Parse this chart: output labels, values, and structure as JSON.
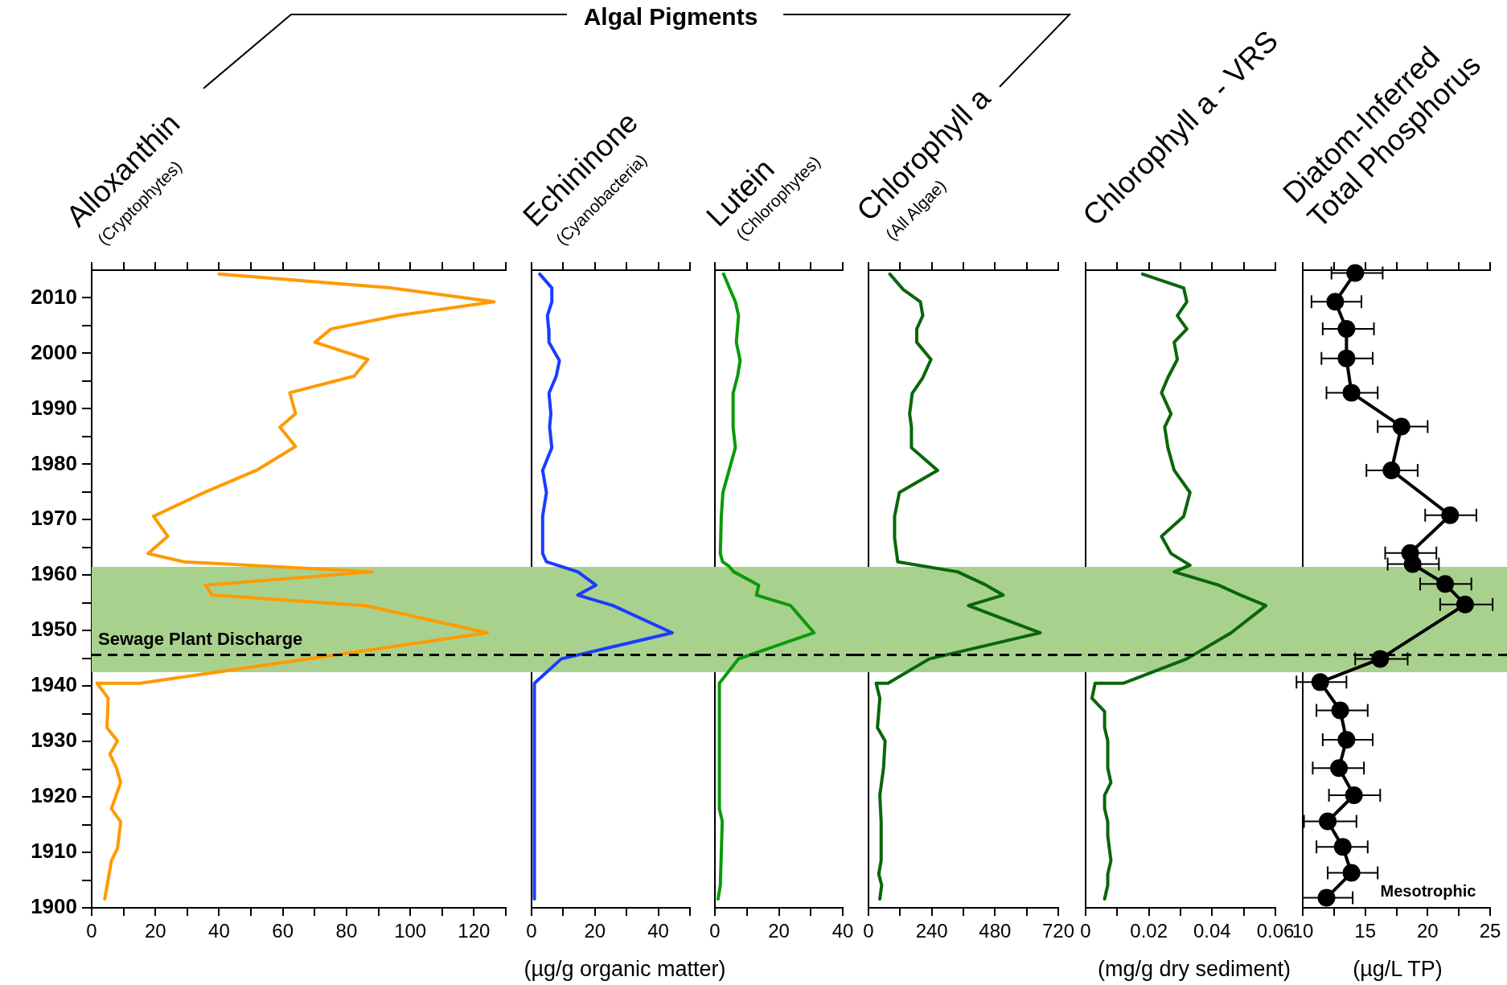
{
  "chart_data": [
    {
      "type": "line",
      "title": "Alloxanthin",
      "subtitle": "(Cryptophytes)",
      "color": "#ff9a00",
      "x": [
        40,
        93.8,
        126.3,
        95.9,
        75.1,
        70.1,
        86.7,
        82.4,
        62.2,
        64,
        59.1,
        64,
        51.7,
        35.7,
        19.4,
        23.9,
        17.7,
        29,
        88.1,
        35.7,
        37.8,
        86,
        124.2,
        15.2,
        1.7,
        5.2,
        4.8,
        8.1,
        5.7,
        7.8,
        9.1,
        6.2,
        9.1,
        8.1,
        6.2,
        4.1
      ],
      "values": [
        2014.3,
        2011.8,
        2009.3,
        2006.8,
        2004.4,
        2002,
        1998.9,
        1995.9,
        1992.9,
        1989.1,
        1986.7,
        1983.2,
        1978.9,
        1975,
        1970.6,
        1967,
        1963.9,
        1962.4,
        1960.6,
        1958.2,
        1956.4,
        1954.5,
        1949.6,
        1940.5,
        1940.5,
        1937.8,
        1932.5,
        1930.1,
        1927.7,
        1925.2,
        1922.6,
        1917.9,
        1915.5,
        1910.7,
        1908.5,
        1901.6
      ],
      "xlim": [
        0,
        130
      ],
      "xticks": [
        0,
        {
          "value": 10,
          "label": null
        },
        20,
        {
          "value": 30,
          "label": null
        },
        40,
        {
          "value": 50,
          "label": null
        },
        60,
        {
          "value": 70,
          "label": null
        },
        80,
        {
          "value": 90,
          "label": null
        },
        100,
        {
          "value": 110,
          "label": null
        },
        120,
        {
          "value": 130,
          "label": null
        }
      ],
      "ylim": [
        1900,
        2015
      ],
      "yticks": [
        1900,
        {
          "value": 1905,
          "label": null
        },
        1910,
        {
          "value": 1915,
          "label": null
        },
        1920,
        {
          "value": 1925,
          "label": null
        },
        1930,
        {
          "value": 1935,
          "label": null
        },
        1940,
        {
          "value": 1945,
          "label": null
        },
        1950,
        {
          "value": 1955,
          "label": null
        },
        1960,
        {
          "value": 1965,
          "label": null
        },
        1970,
        {
          "value": 1975,
          "label": null
        },
        1980,
        {
          "value": 1985,
          "label": null
        },
        1990,
        {
          "value": 1995,
          "label": null
        },
        2000,
        {
          "value": 2005,
          "label": null
        },
        2010
      ],
      "bands": [
        {
          "axis": "y",
          "from": 1942.5,
          "to": 1961.5,
          "color": "#a9d18e"
        }
      ],
      "ref_lines": [
        {
          "axis": "y",
          "value": 1945.6,
          "label": "Sewage Plant Discharge",
          "line_style": "dashed"
        }
      ],
      "annotations": [
        "Algal Pigments"
      ]
    },
    {
      "type": "line",
      "title": "Echininone",
      "subtitle": "(Cyanobacteria)",
      "xlabel": "(µg/g organic matter)",
      "color": "#1a3cff",
      "tick_labels": "x",
      "x": [
        2.6,
        6.4,
        6.4,
        5,
        5.4,
        5.5,
        8.8,
        7.8,
        5.5,
        6.1,
        5.7,
        6.4,
        3.5,
        4.7,
        3.5,
        3.5,
        4.7,
        14.6,
        20.3,
        14.6,
        25.7,
        44.4,
        9.4,
        0.9,
        0.9
      ],
      "values": [
        2014.3,
        2011.8,
        2009.3,
        2006.8,
        2004.4,
        2002,
        1998.7,
        1995.9,
        1992.8,
        1989.1,
        1986.7,
        1983,
        1978.9,
        1974.9,
        1970.6,
        1963.9,
        1962.4,
        1960.6,
        1958.2,
        1956.4,
        1954.5,
        1949.6,
        1944.9,
        1940.5,
        1901.6
      ],
      "xlim": [
        0,
        50
      ],
      "xticks": [
        0,
        {
          "value": 10,
          "label": null
        },
        20,
        {
          "value": 30,
          "label": null
        },
        40,
        {
          "value": 50,
          "label": null
        }
      ],
      "ylim": [
        1900,
        2015
      ],
      "bands": [
        {
          "axis": "y",
          "from": 1942.5,
          "to": 1961.5,
          "color": "#a9d18e"
        }
      ],
      "ref_lines": [
        {
          "axis": "y",
          "value": 1945.6,
          "line_style": "dashed"
        }
      ]
    },
    {
      "type": "line",
      "title": "Lutein",
      "subtitle": "(Chlorophytes)",
      "color": "#0a9a0a",
      "tick_labels": "x",
      "x": [
        2.7,
        6.4,
        7.4,
        6.7,
        7.9,
        7.1,
        5.7,
        5.7,
        6.4,
        2.5,
        2,
        1.7,
        2.4,
        4.4,
        5.9,
        13.7,
        13,
        23.7,
        31,
        7.4,
        1.4,
        1.4,
        2.3,
        1.7,
        1
      ],
      "values": [
        2014.3,
        2009.3,
        2006.8,
        2002,
        1998.7,
        1995.9,
        1992.8,
        1986.7,
        1983,
        1974.9,
        1970.6,
        1963.9,
        1962.4,
        1961.6,
        1960.6,
        1958.2,
        1956.4,
        1954.5,
        1949.6,
        1944.9,
        1940.5,
        1917.9,
        1915.6,
        1904.1,
        1901.6
      ],
      "xlim": [
        0,
        40
      ],
      "xticks": [
        0,
        {
          "value": 10,
          "label": null
        },
        20,
        {
          "value": 30,
          "label": null
        },
        40
      ],
      "ylim": [
        1900,
        2015
      ],
      "bands": [
        {
          "axis": "y",
          "from": 1942.5,
          "to": 1961.5,
          "color": "#a9d18e"
        }
      ],
      "ref_lines": [
        {
          "axis": "y",
          "value": 1945.6,
          "line_style": "dashed"
        }
      ]
    },
    {
      "type": "line",
      "title": "Chlorophyll a",
      "subtitle": "(All Algae)",
      "color": "#0a660a",
      "tick_labels": "x",
      "x": [
        81,
        132,
        197,
        206,
        183,
        183,
        237,
        206,
        166,
        156,
        163,
        163,
        262,
        117,
        99,
        99,
        111,
        338,
        446,
        511,
        379,
        651,
        231,
        74,
        29,
        43,
        34,
        63,
        57,
        43,
        48,
        48,
        39,
        50,
        43
      ],
      "values": [
        2014.3,
        2011.5,
        2009.3,
        2006.8,
        2004.4,
        2002,
        1998.9,
        1995.6,
        1992.8,
        1989.1,
        1986.7,
        1983,
        1978.9,
        1974.9,
        1970.6,
        1966.7,
        1962.4,
        1960.6,
        1958.2,
        1956.4,
        1954.5,
        1949.6,
        1944.9,
        1940.5,
        1940.5,
        1937.8,
        1932.5,
        1930.1,
        1925.2,
        1920.3,
        1915.5,
        1908.5,
        1906.1,
        1904.1,
        1901.6
      ],
      "xlim": [
        0,
        720
      ],
      "xticks": [
        0,
        {
          "value": 120,
          "label": null
        },
        240,
        {
          "value": 360,
          "label": null
        },
        480,
        {
          "value": 600,
          "label": null
        },
        720
      ],
      "ylim": [
        1900,
        2015
      ],
      "bands": [
        {
          "axis": "y",
          "from": 1942.5,
          "to": 1961.5,
          "color": "#a9d18e"
        }
      ],
      "ref_lines": [
        {
          "axis": "y",
          "value": 1945.6,
          "line_style": "dashed"
        }
      ]
    },
    {
      "type": "line",
      "title": "Chlorophyll a - VRS",
      "xlabel": "(mg/g dry sediment)",
      "color": "#0a660a",
      "tick_labels": "x",
      "x": [
        0.018,
        0.031,
        0.032,
        0.029,
        0.032,
        0.028,
        0.029,
        0.026,
        0.024,
        0.027,
        0.025,
        0.026,
        0.028,
        0.033,
        0.031,
        0.024,
        0.027,
        0.033,
        0.028,
        0.042,
        0.049,
        0.057,
        0.046,
        0.032,
        0.012,
        0.003,
        0.002,
        0.006,
        0.006,
        0.007,
        0.007,
        0.008,
        0.006,
        0.006,
        0.007,
        0.007,
        0.008,
        0.007,
        0.007,
        0.006
      ],
      "values": [
        2014.3,
        2011.8,
        2009.3,
        2006.8,
        2004.4,
        2002,
        1998.9,
        1995.6,
        1992.9,
        1989.1,
        1986.7,
        1983,
        1978.9,
        1974.9,
        1970.6,
        1967,
        1963.9,
        1961.8,
        1960.6,
        1958.2,
        1956.4,
        1954.5,
        1949.6,
        1944.9,
        1940.5,
        1940.5,
        1937.8,
        1935.4,
        1932.5,
        1930.1,
        1925.2,
        1922.6,
        1920.3,
        1917.9,
        1915.5,
        1913,
        1908.5,
        1906.1,
        1904.1,
        1901.6
      ],
      "xlim": [
        0,
        0.06
      ],
      "xticks": [
        0,
        {
          "value": 0.01,
          "label": null
        },
        0.02,
        {
          "value": 0.03,
          "label": null
        },
        0.04,
        {
          "value": 0.05,
          "label": null
        },
        0.06
      ],
      "ylim": [
        1900,
        2015
      ],
      "bands": [
        {
          "axis": "y",
          "from": 1942.5,
          "to": 1961.5,
          "color": "#a9d18e"
        }
      ],
      "ref_lines": [
        {
          "axis": "y",
          "value": 1945.6,
          "line_style": "dashed"
        }
      ]
    },
    {
      "type": "line",
      "title": "Diatom-Inferred Total Phosphorus",
      "xlabel": "(µg/L TP)",
      "color": "#000000",
      "marker": "circle",
      "tick_labels": "x",
      "x": [
        14.2,
        12.6,
        13.5,
        13.5,
        13.9,
        17.9,
        17.1,
        21.8,
        18.6,
        18.8,
        21.4,
        23,
        16.2,
        11.4,
        13,
        13.5,
        12.9,
        14.1,
        12,
        13.2,
        13.9,
        11.9
      ],
      "values": [
        2014.5,
        2009.3,
        2004.4,
        1999.1,
        1992.9,
        1986.8,
        1978.9,
        1970.8,
        1964,
        1962,
        1958.4,
        1954.7,
        1944.9,
        1940.7,
        1935.6,
        1930.3,
        1925.2,
        1920.3,
        1915.6,
        1911,
        1906.3,
        1901.8
      ],
      "xerrors": [
        [
          12.3,
          16.4
        ],
        [
          10.7,
          14.7
        ],
        [
          11.6,
          15.7
        ],
        [
          11.5,
          15.6
        ],
        [
          11.9,
          16
        ],
        [
          16,
          20
        ],
        [
          15.1,
          19.2
        ],
        [
          19.8,
          23.9
        ],
        [
          16.6,
          20.7
        ],
        [
          16.8,
          20.9
        ],
        [
          19.4,
          23.5
        ],
        [
          21,
          25.2
        ],
        [
          14.2,
          18.4
        ],
        [
          9.5,
          13.5
        ],
        [
          11.1,
          15.2
        ],
        [
          11.6,
          15.6
        ],
        [
          10.8,
          14.9
        ],
        [
          12.1,
          16.2
        ],
        [
          10.1,
          14.3
        ],
        [
          11.1,
          15.2
        ],
        [
          12,
          16
        ],
        [
          10,
          14
        ]
      ],
      "xlim": [
        10,
        25
      ],
      "xticks": [
        10,
        {
          "value": 12.5,
          "label": null
        },
        15,
        {
          "value": 17.5,
          "label": null
        },
        20,
        {
          "value": 22.5,
          "label": null
        },
        25
      ],
      "ylim": [
        1900,
        2015
      ],
      "bands": [
        {
          "axis": "y",
          "from": 1942.5,
          "to": 1961.5,
          "color": "#a9d18e"
        }
      ],
      "ref_lines": [
        {
          "axis": "y",
          "value": 1945.6,
          "line_style": "dashed"
        }
      ],
      "annotations": [
        "Mesotrophic"
      ]
    }
  ]
}
